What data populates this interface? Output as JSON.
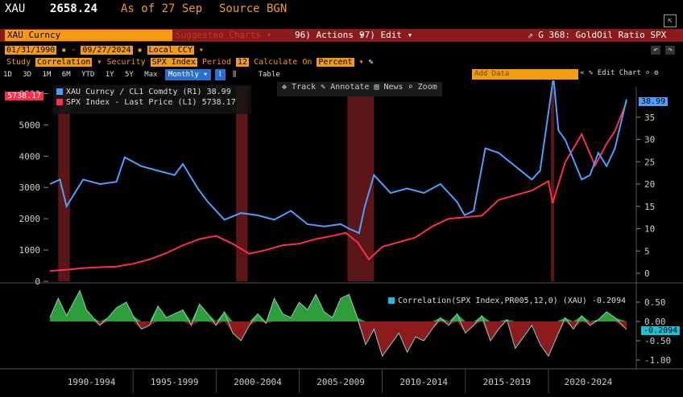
{
  "header": {
    "ticker": "XAU",
    "price": "2658.24",
    "as_of": "As of 27 Sep",
    "source": "Source BGN"
  },
  "toolbar": {
    "security": "XAU Curncy",
    "suggested": "Suggested Charts",
    "actions": "96) Actions",
    "edit": "97) Edit",
    "graph_title": "G 368: GoldOil Ratio SPX"
  },
  "settings": {
    "start_date": "01/31/1990",
    "end_date": "09/27/2024",
    "currency": "Local CCY",
    "study_label": "Study",
    "study": "Correlation",
    "security_label": "Security",
    "security": "SPX Index",
    "period_label": "Period",
    "period": "12",
    "calc_label": "Calculate On",
    "calc": "Percent"
  },
  "tabs": [
    "1D",
    "3D",
    "1M",
    "6M",
    "YTD",
    "1Y",
    "5Y",
    "Max",
    "Monthly",
    "Table"
  ],
  "active_tab": "Monthly",
  "right_tools": {
    "add_data": "Add Data",
    "edit_chart": "Edit Chart"
  },
  "chart_tools": [
    "Track",
    "Annotate",
    "News",
    "Zoom"
  ],
  "left_badge": "5738.17",
  "right_badge": "38.99",
  "corr_badge": "-0.2094",
  "colors": {
    "blue": "#4a9fff",
    "red": "#ff2d4a",
    "orange": "#f39c12",
    "green": "#2e9e3a",
    "darkred": "#8e1b1b"
  },
  "chart_data": [
    {
      "type": "line",
      "series": [
        {
          "name": "XAU Curncy / CL1 Comdty (R1)",
          "last": "38.99",
          "axis": "right",
          "x": [
            1990.0,
            1990.6,
            1991.0,
            1992.0,
            1993.0,
            1994.0,
            1994.5,
            1995.5,
            1996.5,
            1997.5,
            1998.0,
            1998.9,
            1999.5,
            2000.5,
            2001.5,
            2002.5,
            2003.5,
            2004.5,
            2005.5,
            2006.5,
            2007.5,
            2008.0,
            2008.6,
            2008.95,
            2009.5,
            2010.5,
            2011.5,
            2012.5,
            2013.5,
            2014.5,
            2014.95,
            2015.5,
            2016.2,
            2017.0,
            2018.0,
            2019.0,
            2019.5,
            2020.15,
            2020.3,
            2020.6,
            2021.0,
            2022.0,
            2022.5,
            2023.0,
            2023.5,
            2024.0,
            2024.7
          ],
          "values": [
            20.0,
            21.0,
            15.0,
            21.0,
            20.0,
            20.5,
            26.0,
            24.0,
            23.0,
            22.0,
            24.5,
            19.0,
            16.0,
            12.0,
            13.5,
            13.0,
            12.0,
            14.0,
            11.0,
            10.5,
            11.0,
            10.0,
            9.0,
            15.0,
            22.0,
            18.0,
            19.0,
            18.0,
            20.0,
            16.0,
            13.0,
            14.0,
            28.0,
            27.0,
            24.0,
            21.0,
            23.0,
            40.0,
            60.0,
            32.0,
            30.0,
            21.0,
            22.0,
            27.0,
            24.0,
            28.0,
            38.99
          ]
        },
        {
          "name": "SPX Index - Last Price (L1)",
          "last": "5738.17",
          "axis": "left",
          "x": [
            1990.0,
            1991.0,
            1992.0,
            1993.0,
            1994.0,
            1995.0,
            1996.0,
            1997.0,
            1998.0,
            1999.0,
            2000.0,
            2001.0,
            2002.0,
            2003.0,
            2004.0,
            2005.0,
            2006.0,
            2007.0,
            2007.8,
            2008.5,
            2009.2,
            2010.0,
            2011.0,
            2012.0,
            2013.0,
            2014.0,
            2015.0,
            2016.0,
            2017.0,
            2018.0,
            2019.0,
            2020.0,
            2020.25,
            2021.0,
            2022.0,
            2022.8,
            2023.5,
            2024.0,
            2024.7
          ],
          "values": [
            330,
            370,
            420,
            450,
            470,
            560,
            700,
            900,
            1150,
            1350,
            1450,
            1200,
            880,
            1000,
            1150,
            1200,
            1350,
            1450,
            1550,
            1250,
            700,
            1100,
            1250,
            1400,
            1750,
            2000,
            2050,
            2100,
            2600,
            2750,
            2900,
            3200,
            2500,
            3800,
            4700,
            3700,
            4400,
            4800,
            5738.17
          ]
        }
      ],
      "left_axis": {
        "ylim": [
          0,
          6000
        ],
        "ticks": [
          "0",
          "1000",
          "2000",
          "3000",
          "4000",
          "5000",
          "6000"
        ]
      },
      "right_axis": {
        "ylim": [
          0,
          40
        ],
        "ticks": [
          "0",
          "5",
          "10",
          "15",
          "20",
          "25",
          "30",
          "35"
        ]
      },
      "x_range": [
        1990.0,
        2024.8
      ]
    },
    {
      "type": "area",
      "series": [
        {
          "name": "Correlation(SPX Index,PR005,12,0) (XAU)",
          "last": "-0.2094",
          "x": [
            1990.0,
            1990.5,
            1991.0,
            1991.8,
            1992.2,
            1992.6,
            1993.0,
            1993.5,
            1994.0,
            1994.6,
            1995.0,
            1995.5,
            1996.0,
            1996.5,
            1997.0,
            1997.5,
            1998.0,
            1998.5,
            1999.0,
            1999.5,
            2000.0,
            2000.5,
            2001.0,
            2001.5,
            2002.0,
            2002.5,
            2003.0,
            2003.5,
            2004.0,
            2004.5,
            2005.0,
            2005.5,
            2006.0,
            2006.5,
            2007.0,
            2007.5,
            2008.0,
            2008.5,
            2009.0,
            2009.5,
            2010.0,
            2010.5,
            2011.0,
            2011.5,
            2012.0,
            2012.5,
            2013.0,
            2013.5,
            2014.0,
            2014.5,
            2015.0,
            2015.5,
            2016.0,
            2016.5,
            2017.0,
            2017.5,
            2018.0,
            2018.5,
            2019.0,
            2019.5,
            2020.0,
            2020.5,
            2021.0,
            2021.5,
            2022.0,
            2022.5,
            2023.0,
            2023.5,
            2024.0,
            2024.7
          ],
          "values": [
            0.1,
            0.6,
            0.15,
            0.8,
            0.3,
            0.1,
            -0.1,
            0.1,
            0.35,
            0.5,
            0.15,
            -0.2,
            -0.1,
            0.4,
            0.1,
            0.2,
            0.3,
            -0.1,
            0.45,
            0.2,
            -0.1,
            0.25,
            -0.3,
            -0.5,
            -0.1,
            0.2,
            -0.05,
            0.6,
            0.2,
            0.1,
            0.5,
            0.3,
            0.7,
            0.25,
            0.1,
            0.6,
            0.7,
            0.1,
            -0.6,
            -0.2,
            -0.9,
            -0.6,
            -0.3,
            -0.8,
            -0.4,
            -0.5,
            -0.2,
            0.1,
            -0.1,
            0.2,
            -0.3,
            -0.1,
            0.15,
            -0.5,
            -0.2,
            0.05,
            -0.7,
            -0.4,
            -0.1,
            -0.6,
            -0.9,
            -0.4,
            0.1,
            -0.2,
            0.15,
            -0.1,
            0.05,
            0.25,
            0.1,
            -0.2094
          ]
        }
      ],
      "ylim": [
        -1.0,
        1.0
      ],
      "y_ticks": [
        "0.50",
        "0.00",
        "-0.50",
        "-1.00"
      ]
    }
  ],
  "x_tick_labels": [
    "1990-1994",
    "1995-1999",
    "2000-2004",
    "2005-2009",
    "2010-2014",
    "2015-2019",
    "2020-2024"
  ],
  "recessions": [
    [
      1990.5,
      1991.2
    ],
    [
      2001.2,
      2001.9
    ],
    [
      2007.9,
      2009.5
    ],
    [
      2020.15,
      2020.35
    ]
  ]
}
